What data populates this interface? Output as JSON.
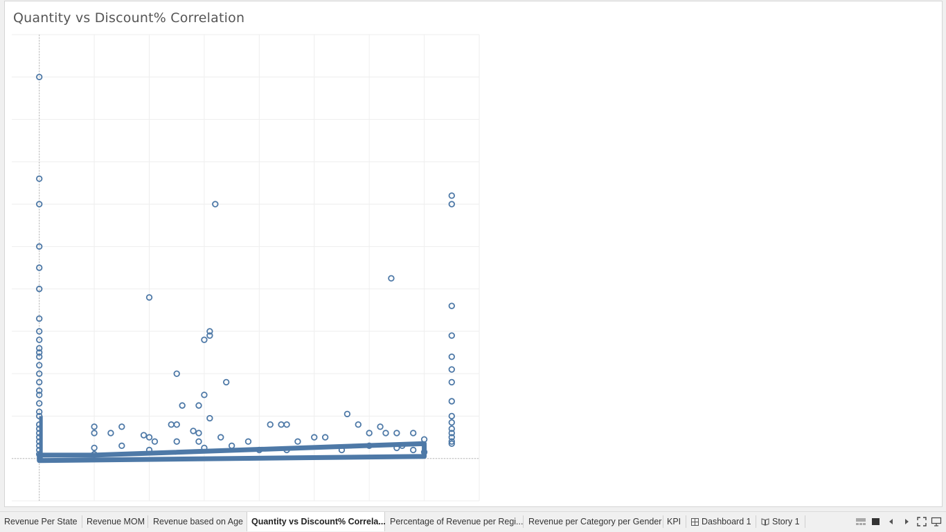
{
  "worksheet": {
    "title": "Quantity vs Discount% Correlation"
  },
  "chart_data": {
    "type": "scatter",
    "title": "Quantity vs Discount% Correlation",
    "xlabel": "",
    "ylabel": "",
    "grid": true,
    "xlim": [
      -0.05,
      0.8
    ],
    "ylim": [
      -1,
      10
    ],
    "mark_color": "#4e79a7",
    "marker": "hollow-circle",
    "series": [
      {
        "points": [
          [
            0,
            9.0
          ],
          [
            0,
            6.6
          ],
          [
            0,
            6.0
          ],
          [
            0,
            5.0
          ],
          [
            0,
            4.5
          ],
          [
            0,
            4.0
          ],
          [
            0,
            3.3
          ],
          [
            0,
            3.0
          ],
          [
            0,
            2.8
          ],
          [
            0,
            2.6
          ],
          [
            0,
            2.5
          ],
          [
            0,
            2.4
          ],
          [
            0,
            2.2
          ],
          [
            0,
            2.0
          ],
          [
            0,
            1.8
          ],
          [
            0,
            1.6
          ],
          [
            0,
            1.5
          ],
          [
            0,
            1.3
          ],
          [
            0,
            1.1
          ],
          [
            0,
            1.0
          ],
          [
            0,
            0.8
          ],
          [
            0,
            0.7
          ],
          [
            0,
            0.6
          ],
          [
            0,
            0.5
          ],
          [
            0,
            0.4
          ],
          [
            0,
            0.3
          ],
          [
            0,
            0.2
          ],
          [
            0,
            0.1
          ],
          [
            0.1,
            0.75
          ],
          [
            0.1,
            0.6
          ],
          [
            0.1,
            0.25
          ],
          [
            0.1,
            0.1
          ],
          [
            0.13,
            0.6
          ],
          [
            0.15,
            0.75
          ],
          [
            0.15,
            0.3
          ],
          [
            0.2,
            3.8
          ],
          [
            0.19,
            0.55
          ],
          [
            0.2,
            0.5
          ],
          [
            0.21,
            0.4
          ],
          [
            0.2,
            0.2
          ],
          [
            0.24,
            0.8
          ],
          [
            0.25,
            0.8
          ],
          [
            0.25,
            2.0
          ],
          [
            0.25,
            0.4
          ],
          [
            0.26,
            1.25
          ],
          [
            0.29,
            1.25
          ],
          [
            0.28,
            0.65
          ],
          [
            0.29,
            0.6
          ],
          [
            0.29,
            0.4
          ],
          [
            0.3,
            2.8
          ],
          [
            0.3,
            1.5
          ],
          [
            0.31,
            0.95
          ],
          [
            0.31,
            2.9
          ],
          [
            0.31,
            3.0
          ],
          [
            0.32,
            6.0
          ],
          [
            0.33,
            0.5
          ],
          [
            0.34,
            1.8
          ],
          [
            0.3,
            0.25
          ],
          [
            0.35,
            0.3
          ],
          [
            0.38,
            0.4
          ],
          [
            0.42,
            0.8
          ],
          [
            0.44,
            0.8
          ],
          [
            0.45,
            0.8
          ],
          [
            0.47,
            0.4
          ],
          [
            0.5,
            0.5
          ],
          [
            0.52,
            0.5
          ],
          [
            0.56,
            1.05
          ],
          [
            0.58,
            0.8
          ],
          [
            0.6,
            0.6
          ],
          [
            0.62,
            0.75
          ],
          [
            0.63,
            0.6
          ],
          [
            0.65,
            0.6
          ],
          [
            0.68,
            0.6
          ],
          [
            0.7,
            0.45
          ],
          [
            0.64,
            4.25
          ],
          [
            0.75,
            6.0
          ],
          [
            0.75,
            6.2
          ],
          [
            0.75,
            3.6
          ],
          [
            0.75,
            2.9
          ],
          [
            0.75,
            2.4
          ],
          [
            0.75,
            2.1
          ],
          [
            0.75,
            1.8
          ],
          [
            0.75,
            1.35
          ],
          [
            0.75,
            1.0
          ],
          [
            0.75,
            0.85
          ],
          [
            0.75,
            0.7
          ],
          [
            0.75,
            0.6
          ],
          [
            0.75,
            0.5
          ],
          [
            0.75,
            0.4
          ],
          [
            0.75,
            0.35
          ],
          [
            0.65,
            0.25
          ],
          [
            0.68,
            0.2
          ],
          [
            0.7,
            0.15
          ],
          [
            0.55,
            0.2
          ],
          [
            0.45,
            0.2
          ],
          [
            0.4,
            0.2
          ],
          [
            0.6,
            0.3
          ],
          [
            0.66,
            0.3
          ]
        ]
      }
    ]
  },
  "sheet_tabs": [
    {
      "label": "Revenue Per State",
      "type": "sheet",
      "active": false
    },
    {
      "label": "Revenue MOM",
      "type": "sheet",
      "active": false
    },
    {
      "label": "Revenue based on Age",
      "type": "sheet",
      "active": false
    },
    {
      "label": "Quantity vs Discount% Correla...",
      "type": "sheet",
      "active": true
    },
    {
      "label": "Percentage of Revenue per Regi...",
      "type": "sheet",
      "active": false
    },
    {
      "label": "Revenue per Category per Gender",
      "type": "sheet",
      "active": false
    },
    {
      "label": "KPI",
      "type": "sheet",
      "active": false
    },
    {
      "label": "Dashboard 1",
      "type": "dashboard",
      "icon": "dashboard-grid-icon",
      "active": false
    },
    {
      "label": "Story 1",
      "type": "story",
      "icon": "story-book-icon",
      "active": false
    }
  ],
  "view_controls": [
    {
      "icon": "filmstrip-view-icon"
    },
    {
      "icon": "show-sheets-icon"
    },
    {
      "icon": "previous-sheet-icon"
    },
    {
      "icon": "next-sheet-icon"
    },
    {
      "icon": "fullscreen-icon"
    },
    {
      "icon": "presentation-mode-icon"
    }
  ]
}
